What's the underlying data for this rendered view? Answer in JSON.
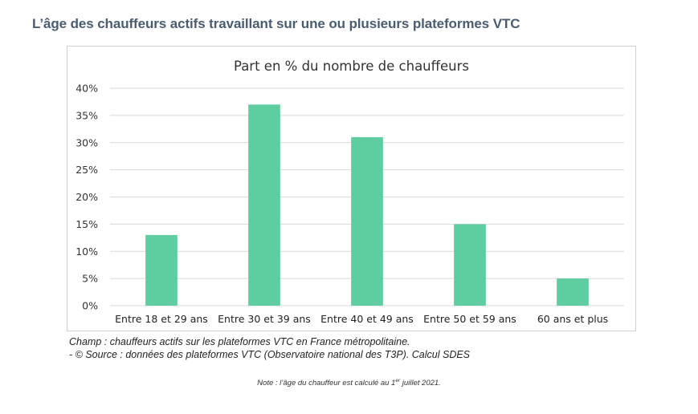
{
  "page": {
    "title": "L’âge des chauffeurs actifs travaillant sur une ou plusieurs plateformes VTC"
  },
  "chart_data": {
    "type": "bar",
    "title": "Part en % du nombre de chauffeurs",
    "categories": [
      "Entre 18 et 29 ans",
      "Entre 30 et 39 ans",
      "Entre 40 et 49 ans",
      "Entre 50 et 59 ans",
      "60 ans et plus"
    ],
    "values": [
      13,
      37,
      31,
      15,
      5
    ],
    "ylim": [
      0,
      40
    ],
    "yticks": [
      0,
      5,
      10,
      15,
      20,
      25,
      30,
      35,
      40
    ],
    "ytick_labels": [
      "0%",
      "5%",
      "10%",
      "15%",
      "20%",
      "25%",
      "30%",
      "35%",
      "40%"
    ],
    "xlabel": "",
    "ylabel": "",
    "grid": true,
    "legend": false,
    "bar_color": "#5ecda0",
    "grid_color": "#d9d9d9"
  },
  "source": {
    "line1": "Champ : chauffeurs actifs sur les plateformes VTC en France métropolitaine.",
    "line2": "- © Source : données des plateformes VTC (Observatoire national des T3P). Calcul SDES"
  },
  "note": {
    "prefix": "Note : l’âge du chauffeur est calculé au 1",
    "superscript": "er",
    "suffix": " juillet 2021."
  }
}
